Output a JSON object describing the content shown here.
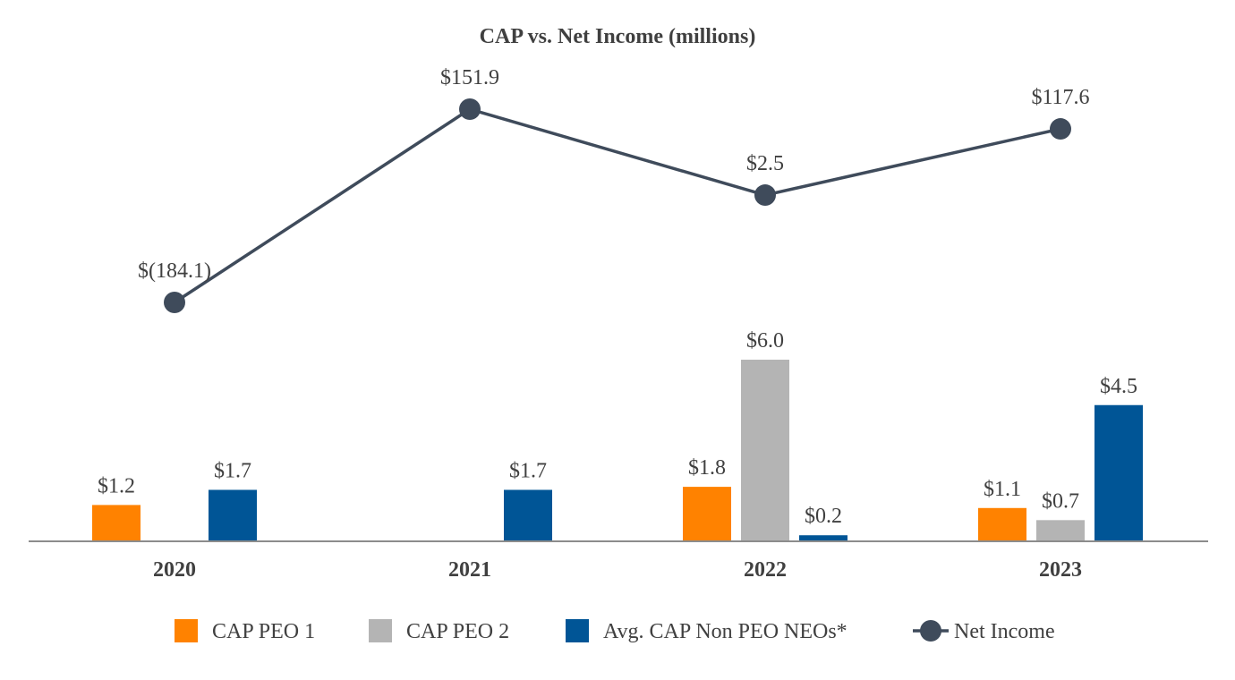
{
  "chart_data": {
    "type": "bar",
    "title": "CAP vs. Net Income (millions)",
    "categories": [
      "2020",
      "2021",
      "2022",
      "2023"
    ],
    "series": [
      {
        "name": "CAP PEO 1",
        "kind": "bar",
        "color": "#FF8200",
        "values": [
          1.2,
          null,
          1.8,
          1.1
        ],
        "labels": [
          "$1.2",
          "",
          "$1.8",
          "$1.1"
        ]
      },
      {
        "name": "CAP PEO 2",
        "kind": "bar",
        "color": "#B4B4B4",
        "values": [
          null,
          null,
          6.0,
          0.7
        ],
        "labels": [
          "",
          "",
          "$6.0",
          "$0.7"
        ]
      },
      {
        "name": "Avg. CAP Non PEO NEOs*",
        "kind": "bar",
        "color": "#005596",
        "values": [
          1.7,
          1.7,
          0.2,
          4.5
        ],
        "labels": [
          "$1.7",
          "$1.7",
          "$0.2",
          "$4.5"
        ]
      },
      {
        "name": "Net Income",
        "kind": "line",
        "color": "#3F4B5B",
        "values": [
          -184.1,
          151.9,
          2.5,
          117.6
        ],
        "labels": [
          "$(184.1)",
          "$151.9",
          "$2.5",
          "$117.6"
        ]
      }
    ],
    "bar_axis": {
      "ylim": [
        0,
        6.0
      ]
    },
    "line_axis": {
      "ylim": [
        -184.1,
        151.9
      ]
    },
    "xlabel": "",
    "ylabel": "",
    "grid": false,
    "legend_position": "bottom"
  }
}
